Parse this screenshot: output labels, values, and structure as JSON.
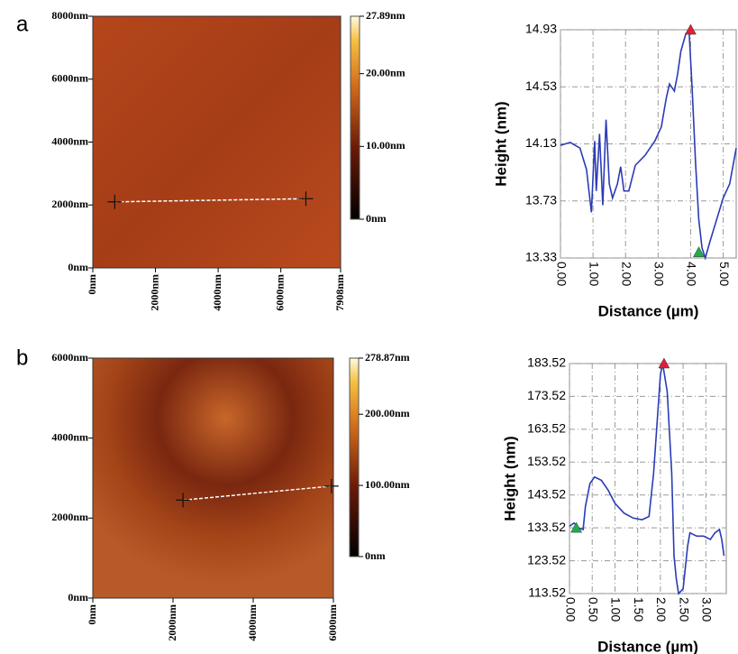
{
  "chart_data": [
    {
      "type": "image",
      "panel": "a",
      "xlim": [
        0,
        7908
      ],
      "ylim": [
        0,
        8000
      ],
      "xticks": [
        {
          "value": 0,
          "label": "0nm"
        },
        {
          "value": 2000,
          "label": "2000nm"
        },
        {
          "value": 4000,
          "label": "4000nm"
        },
        {
          "value": 6000,
          "label": "6000nm"
        },
        {
          "value": 7908,
          "label": "7908nm"
        }
      ],
      "yticks": [
        {
          "value": 0,
          "label": "0nm"
        },
        {
          "value": 2000,
          "label": "2000nm"
        },
        {
          "value": 4000,
          "label": "4000nm"
        },
        {
          "value": 6000,
          "label": "6000nm"
        },
        {
          "value": 8000,
          "label": "8000nm"
        }
      ],
      "clim": [
        0,
        27.89
      ],
      "cticks": [
        {
          "value": 0,
          "label": "0nm"
        },
        {
          "value": 10,
          "label": "10.00nm"
        },
        {
          "value": 20,
          "label": "20.00nm"
        },
        {
          "value": 27.89,
          "label": "27.89nm"
        }
      ],
      "profile": {
        "x": [
          700,
          6800
        ],
        "y": [
          2100,
          2200
        ]
      }
    },
    {
      "type": "line",
      "ylabel": "Height (nm)",
      "xlabel": "Distance (µm)",
      "color": "#2b3bb5",
      "xlim": [
        0,
        5.4
      ],
      "ylim": [
        13.33,
        14.93
      ],
      "xticks": [
        {
          "value": 0,
          "label": "0.00"
        },
        {
          "value": 1,
          "label": "1.00"
        },
        {
          "value": 2,
          "label": "2.00"
        },
        {
          "value": 3,
          "label": "3.00"
        },
        {
          "value": 4,
          "label": "4.00"
        },
        {
          "value": 5,
          "label": "5.00"
        }
      ],
      "yticks": [
        13.33,
        13.73,
        14.13,
        14.53,
        14.93
      ],
      "x": [
        0,
        0.3,
        0.6,
        0.8,
        0.9,
        0.95,
        1.0,
        1.05,
        1.1,
        1.2,
        1.3,
        1.4,
        1.5,
        1.6,
        1.75,
        1.85,
        1.95,
        2.1,
        2.3,
        2.6,
        2.9,
        3.1,
        3.25,
        3.35,
        3.5,
        3.6,
        3.7,
        3.85,
        3.95,
        4.05,
        4.15,
        4.25,
        4.35,
        4.45,
        4.6,
        4.8,
        5.0,
        5.2,
        5.4
      ],
      "values": [
        14.12,
        14.14,
        14.1,
        13.95,
        13.75,
        13.65,
        13.9,
        14.15,
        13.8,
        14.2,
        13.7,
        14.3,
        13.85,
        13.75,
        13.85,
        13.97,
        13.8,
        13.8,
        13.98,
        14.05,
        14.15,
        14.25,
        14.45,
        14.55,
        14.5,
        14.62,
        14.78,
        14.9,
        14.93,
        14.5,
        14.0,
        13.6,
        13.4,
        13.33,
        13.45,
        13.6,
        13.75,
        13.85,
        14.1
      ],
      "cursors": [
        {
          "x": 4.0,
          "y": 14.93,
          "color": "#e0203a"
        },
        {
          "x": 4.25,
          "y": 13.37,
          "color": "#1fae4a"
        }
      ]
    },
    {
      "type": "image",
      "panel": "b",
      "xlim": [
        0,
        6000
      ],
      "ylim": [
        0,
        6000
      ],
      "xticks": [
        {
          "value": 0,
          "label": "0nm"
        },
        {
          "value": 2000,
          "label": "2000nm"
        },
        {
          "value": 4000,
          "label": "4000nm"
        },
        {
          "value": 6000,
          "label": "6000nm"
        }
      ],
      "yticks": [
        {
          "value": 0,
          "label": "0nm"
        },
        {
          "value": 2000,
          "label": "2000nm"
        },
        {
          "value": 4000,
          "label": "4000nm"
        },
        {
          "value": 6000,
          "label": "6000nm"
        }
      ],
      "clim": [
        0,
        278.87
      ],
      "cticks": [
        {
          "value": 0,
          "label": "0nm"
        },
        {
          "value": 100,
          "label": "100.00nm"
        },
        {
          "value": 200,
          "label": "200.00nm"
        },
        {
          "value": 278.87,
          "label": "278.87nm"
        }
      ],
      "profile": {
        "x": [
          2250,
          5950
        ],
        "y": [
          2450,
          2800
        ]
      }
    },
    {
      "type": "line",
      "ylabel": "Height (nm)",
      "xlabel": "Distance (µm)",
      "color": "#2b3bb5",
      "xlim": [
        0,
        3.45
      ],
      "ylim": [
        113.52,
        183.52
      ],
      "xticks": [
        {
          "value": 0,
          "label": "0.00"
        },
        {
          "value": 0.5,
          "label": "0.50"
        },
        {
          "value": 1,
          "label": "1.00"
        },
        {
          "value": 1.5,
          "label": "1.50"
        },
        {
          "value": 2,
          "label": "2.00"
        },
        {
          "value": 2.5,
          "label": "2.50"
        },
        {
          "value": 3,
          "label": "3.00"
        }
      ],
      "yticks": [
        113.52,
        123.52,
        133.52,
        143.52,
        153.52,
        163.52,
        173.52,
        183.52
      ],
      "x": [
        0,
        0.1,
        0.2,
        0.3,
        0.35,
        0.45,
        0.55,
        0.7,
        0.85,
        1.0,
        1.2,
        1.4,
        1.6,
        1.75,
        1.85,
        1.95,
        2.0,
        2.05,
        2.15,
        2.25,
        2.3,
        2.35,
        2.4,
        2.5,
        2.6,
        2.65,
        2.8,
        2.95,
        3.1,
        3.2,
        3.3,
        3.35,
        3.4
      ],
      "values": [
        134,
        135,
        133.5,
        133,
        140,
        147,
        149,
        148,
        145,
        141,
        138,
        136.5,
        136,
        137,
        150,
        170,
        180,
        183.5,
        175,
        150,
        125,
        118,
        113.5,
        115,
        128,
        132,
        131,
        131,
        130,
        132,
        133,
        130,
        125
      ],
      "cursors": [
        {
          "x": 2.08,
          "y": 183.52,
          "color": "#e0203a"
        },
        {
          "x": 0.15,
          "y": 133.52,
          "color": "#1fae4a"
        }
      ]
    }
  ]
}
